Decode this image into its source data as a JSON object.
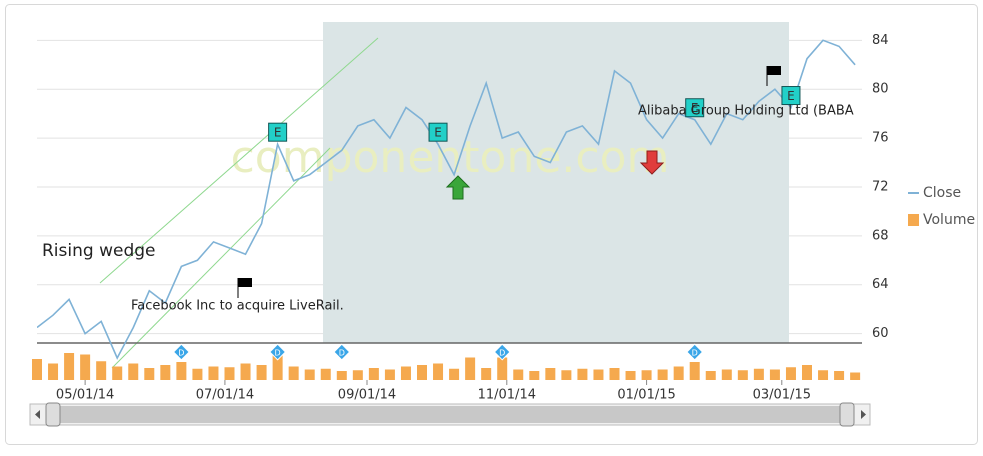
{
  "chart_data": {
    "type": "line",
    "x": [
      "2014-04-10",
      "2014-04-17",
      "2014-04-24",
      "2014-05-01",
      "2014-05-08",
      "2014-05-15",
      "2014-05-22",
      "2014-05-29",
      "2014-06-05",
      "2014-06-12",
      "2014-06-19",
      "2014-06-26",
      "2014-07-03",
      "2014-07-10",
      "2014-07-17",
      "2014-07-24",
      "2014-07-31",
      "2014-08-07",
      "2014-08-14",
      "2014-08-21",
      "2014-08-28",
      "2014-09-04",
      "2014-09-11",
      "2014-09-18",
      "2014-09-25",
      "2014-10-02",
      "2014-10-09",
      "2014-10-16",
      "2014-10-23",
      "2014-10-30",
      "2014-11-06",
      "2014-11-13",
      "2014-11-20",
      "2014-11-27",
      "2014-12-04",
      "2014-12-11",
      "2014-12-18",
      "2014-12-25",
      "2015-01-01",
      "2015-01-08",
      "2015-01-15",
      "2015-01-22",
      "2015-01-29",
      "2015-02-05",
      "2015-02-12",
      "2015-02-19",
      "2015-02-26",
      "2015-03-05",
      "2015-03-12",
      "2015-03-19",
      "2015-03-26",
      "2015-04-02"
    ],
    "series": [
      {
        "name": "Close",
        "color": "#7fb2d6",
        "values": [
          60.5,
          61.5,
          62.8,
          60.0,
          61.0,
          58.0,
          60.5,
          63.5,
          62.5,
          65.5,
          66.0,
          67.5,
          67.0,
          66.5,
          69.0,
          75.5,
          72.5,
          73.0,
          74.0,
          75.0,
          77.0,
          77.5,
          76.0,
          78.5,
          77.5,
          75.5,
          73.0,
          77.0,
          80.5,
          76.0,
          76.5,
          74.5,
          74.0,
          76.5,
          77.0,
          75.5,
          81.5,
          80.5,
          77.5,
          76.0,
          78.0,
          77.5,
          75.5,
          78.0,
          77.5,
          79.0,
          80.0,
          78.5,
          82.5,
          84.0,
          83.5,
          82.0
        ]
      },
      {
        "name": "Volume",
        "color": "#f5a94e",
        "axis": "y2",
        "values": [
          28,
          22,
          36,
          34,
          25,
          18,
          22,
          16,
          20,
          24,
          15,
          18,
          17,
          22,
          20,
          40,
          18,
          14,
          15,
          12,
          13,
          16,
          14,
          18,
          20,
          22,
          15,
          30,
          16,
          30,
          14,
          12,
          16,
          13,
          15,
          14,
          16,
          12,
          13,
          14,
          18,
          24,
          12,
          14,
          13,
          15,
          14,
          17,
          20,
          13,
          12,
          10
        ]
      }
    ],
    "xlim": [
      "2014-04-10",
      "2015-04-05"
    ],
    "xticks": [
      {
        "value": "2014-05-01",
        "label": "05/01/14"
      },
      {
        "value": "2014-07-01",
        "label": "07/01/14"
      },
      {
        "value": "2014-09-01",
        "label": "09/01/14"
      },
      {
        "value": "2014-11-01",
        "label": "11/01/14"
      },
      {
        "value": "2015-01-01",
        "label": "01/01/15"
      },
      {
        "value": "2015-03-01",
        "label": "03/01/15"
      }
    ],
    "ylim": [
      56.2,
      85.5
    ],
    "yticks": [
      60,
      64,
      68,
      72,
      76,
      80,
      84
    ],
    "y2lim": [
      0,
      60
    ],
    "grid": true,
    "legend": "right",
    "events": [
      {
        "label": "E",
        "x": "2014-07-24"
      },
      {
        "label": "E",
        "x": "2014-10-02"
      },
      {
        "label": "E",
        "x": "2015-01-22"
      },
      {
        "label": "E",
        "x": "2015-03-05"
      },
      {
        "label": "D",
        "x": "2014-06-12"
      },
      {
        "label": "D",
        "x": "2014-07-24"
      },
      {
        "label": "D",
        "x": "2014-08-21"
      },
      {
        "label": "D",
        "x": "2014-10-30"
      },
      {
        "label": "D",
        "x": "2015-01-22"
      }
    ],
    "annotations": [
      {
        "text": "Rising wedge"
      },
      {
        "text": "Facebook Inc to acquire LiveRail."
      },
      {
        "text": "Alibaba Group Holding Ltd (BABA"
      }
    ],
    "watermark": "componentone.com"
  }
}
